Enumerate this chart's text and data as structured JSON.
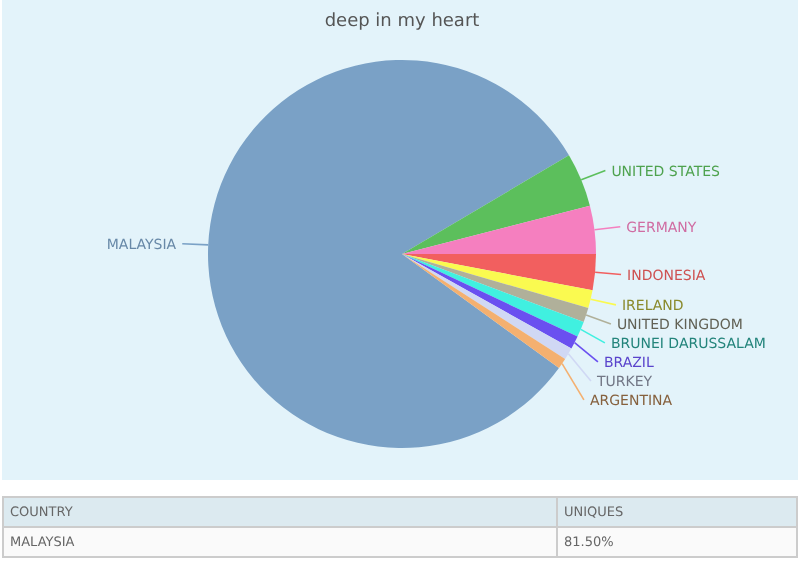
{
  "chart_data": {
    "type": "pie",
    "title": "deep in my heart",
    "categories": [
      "MALAYSIA",
      "UNITED STATES",
      "GERMANY",
      "INDONESIA",
      "IRELAND",
      "UNITED KINGDOM",
      "BRUNEI DARUSSALAM",
      "BRAZIL",
      "TURKEY",
      "ARGENTINA"
    ],
    "values": [
      81.5,
      4.5,
      4.0,
      3.0,
      1.5,
      1.2,
      1.3,
      1.1,
      1.0,
      0.9
    ],
    "colors": [
      "#7aa1c6",
      "#5cbf5c",
      "#f57fbf",
      "#f25f5f",
      "#fafa50",
      "#b0b09a",
      "#40f0e0",
      "#6a50f0",
      "#d0d8f4",
      "#f4b070"
    ],
    "value_labels": [
      "81.50%",
      null,
      null,
      null,
      null,
      null,
      null,
      null,
      null,
      null
    ],
    "annotations": [
      "COUNTRY",
      "UNIQUES"
    ]
  }
}
